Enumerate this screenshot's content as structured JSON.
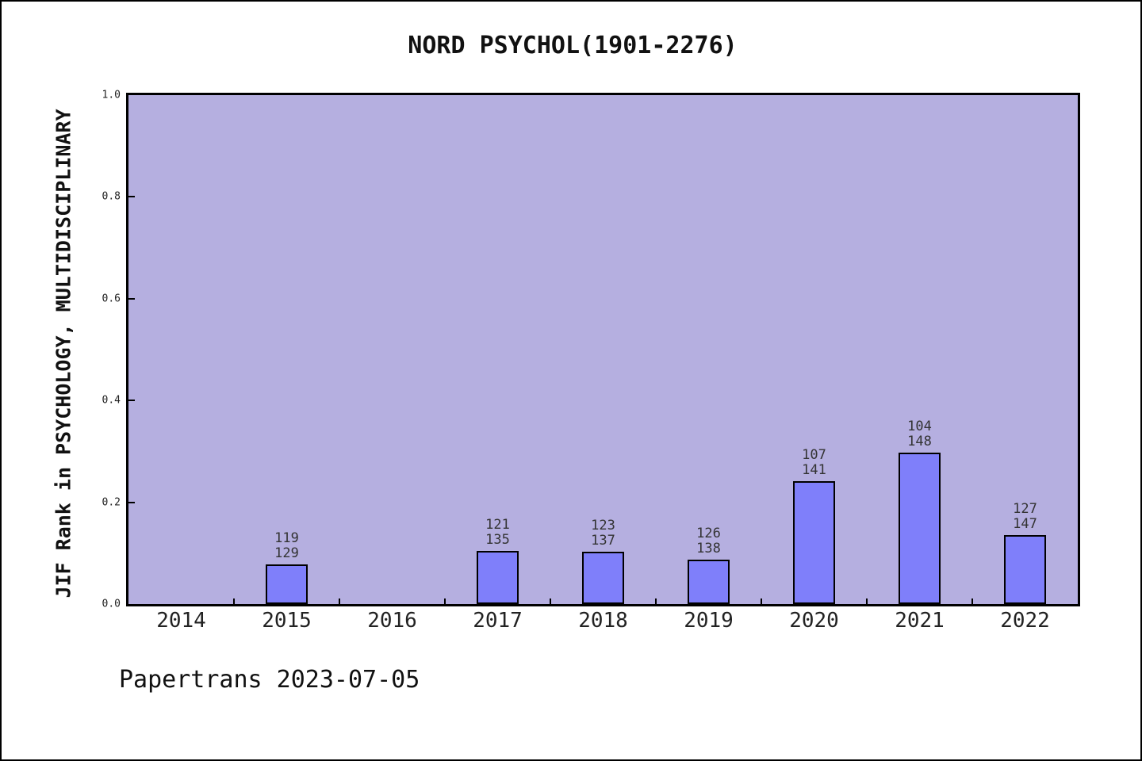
{
  "title": "NORD PSYCHOL(1901-2276)",
  "footer": "Papertrans 2023-07-05",
  "colors": {
    "plot_background": "#b5afe0",
    "bar_fill": "#7f7ffa",
    "axis": "#000000",
    "figure_background": "#ffffff"
  },
  "chart_data": {
    "type": "bar",
    "title": "NORD PSYCHOL(1901-2276)",
    "xlabel": "",
    "ylabel": "JIF Rank in PSYCHOLOGY, MULTIDISCIPLINARY",
    "ylim": [
      0.0,
      1.0
    ],
    "y_ticks": [
      "0.0",
      "0.2",
      "0.4",
      "0.6",
      "0.8",
      "1.0"
    ],
    "grid": "off",
    "legend": "none",
    "categories": [
      "2014",
      "2015",
      "2016",
      "2017",
      "2018",
      "2019",
      "2020",
      "2021",
      "2022"
    ],
    "bars": [
      {
        "year": "2014",
        "rank": null,
        "total": null,
        "value": null
      },
      {
        "year": "2015",
        "rank": "119",
        "total": "129",
        "value": 0.0775
      },
      {
        "year": "2016",
        "rank": null,
        "total": null,
        "value": null
      },
      {
        "year": "2017",
        "rank": "121",
        "total": "135",
        "value": 0.1037
      },
      {
        "year": "2018",
        "rank": "123",
        "total": "137",
        "value": 0.1022
      },
      {
        "year": "2019",
        "rank": "126",
        "total": "138",
        "value": 0.087
      },
      {
        "year": "2020",
        "rank": "107",
        "total": "141",
        "value": 0.2411
      },
      {
        "year": "2021",
        "rank": "104",
        "total": "148",
        "value": 0.2973
      },
      {
        "year": "2022",
        "rank": "127",
        "total": "147",
        "value": 0.1361
      }
    ],
    "annotation_format": "rank over total, stacked above each bar"
  }
}
